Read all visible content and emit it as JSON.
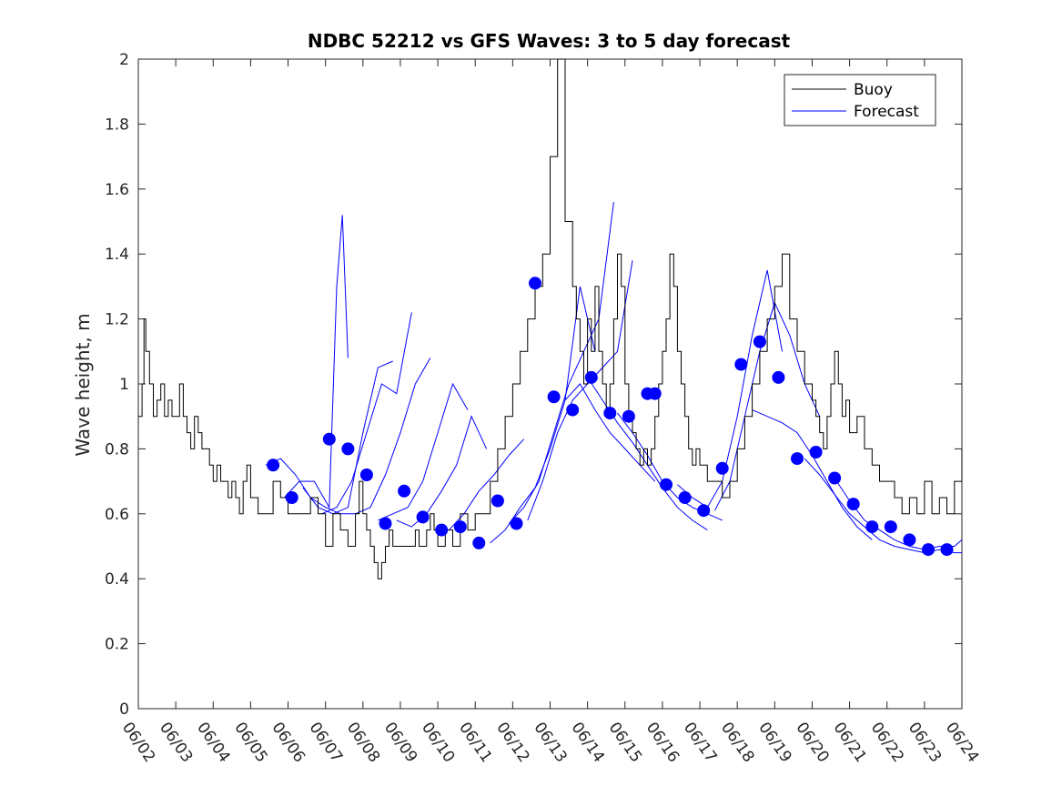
{
  "chart_data": {
    "type": "line",
    "title": "NDBC 52212 vs GFS Waves: 3 to 5 day forecast",
    "xlabel": "",
    "ylabel": "Wave height, m",
    "xlim": [
      "06/02",
      "06/24"
    ],
    "ylim": [
      0,
      2
    ],
    "yticks": [
      "0",
      "0.2",
      "0.4",
      "0.6",
      "0.8",
      "1",
      "1.2",
      "1.4",
      "1.6",
      "1.8",
      "2"
    ],
    "xticks": [
      "06/02",
      "06/03",
      "06/04",
      "06/05",
      "06/06",
      "06/07",
      "06/08",
      "06/09",
      "06/10",
      "06/11",
      "06/12",
      "06/13",
      "06/14",
      "06/15",
      "06/16",
      "06/17",
      "06/18",
      "06/19",
      "06/20",
      "06/21",
      "06/22",
      "06/23",
      "06/24"
    ],
    "grid": false,
    "legend": {
      "position": "top-right",
      "entries": [
        "Buoy",
        "Forecast"
      ]
    },
    "colors": {
      "buoy": "#000000",
      "forecast": "#0000ff",
      "marker": "#0000ff"
    },
    "series": [
      {
        "name": "Buoy",
        "x_days": [
          0,
          0.1,
          0.15,
          0.2,
          0.3,
          0.4,
          0.5,
          0.6,
          0.7,
          0.8,
          0.9,
          1.0,
          1.1,
          1.2,
          1.3,
          1.4,
          1.5,
          1.6,
          1.7,
          1.8,
          1.9,
          2.0,
          2.1,
          2.2,
          2.3,
          2.4,
          2.5,
          2.6,
          2.7,
          2.8,
          2.9,
          3.0,
          3.2,
          3.4,
          3.6,
          3.8,
          4.0,
          4.2,
          4.4,
          4.6,
          4.8,
          5.0,
          5.2,
          5.4,
          5.6,
          5.8,
          5.9,
          6.0,
          6.1,
          6.2,
          6.3,
          6.4,
          6.5,
          6.6,
          6.7,
          6.8,
          6.9,
          7.0,
          7.1,
          7.2,
          7.3,
          7.4,
          7.5,
          7.6,
          7.7,
          7.8,
          7.9,
          8.0,
          8.2,
          8.4,
          8.6,
          8.8,
          9.0,
          9.2,
          9.4,
          9.6,
          9.8,
          10.0,
          10.2,
          10.4,
          10.6,
          10.8,
          11.0,
          11.2,
          11.4,
          11.6,
          11.7,
          11.8,
          11.9,
          12.0,
          12.1,
          12.2,
          12.3,
          12.4,
          12.5,
          12.6,
          12.7,
          12.8,
          12.9,
          13.0,
          13.1,
          13.2,
          13.3,
          13.4,
          13.5,
          13.6,
          13.7,
          13.8,
          13.9,
          14.0,
          14.1,
          14.2,
          14.3,
          14.4,
          14.5,
          14.6,
          14.7,
          14.8,
          14.9,
          15.0,
          15.2,
          15.4,
          15.6,
          15.8,
          16.0,
          16.2,
          16.4,
          16.6,
          16.8,
          17.0,
          17.2,
          17.4,
          17.6,
          17.8,
          18.0,
          18.1,
          18.2,
          18.3,
          18.4,
          18.5,
          18.6,
          18.7,
          18.8,
          18.9,
          19.0,
          19.2,
          19.4,
          19.6,
          19.8,
          20.0,
          20.2,
          20.4,
          20.6,
          20.8,
          21.0,
          21.2,
          21.4,
          21.6,
          21.8,
          22.0
        ],
        "values": [
          0.9,
          1.0,
          1.2,
          1.1,
          1.0,
          0.9,
          0.95,
          1.0,
          0.9,
          0.95,
          0.9,
          0.9,
          1.0,
          0.9,
          0.85,
          0.8,
          0.9,
          0.85,
          0.8,
          0.8,
          0.75,
          0.7,
          0.75,
          0.7,
          0.7,
          0.65,
          0.7,
          0.65,
          0.6,
          0.7,
          0.75,
          0.65,
          0.6,
          0.6,
          0.7,
          0.65,
          0.6,
          0.6,
          0.6,
          0.65,
          0.6,
          0.5,
          0.6,
          0.55,
          0.5,
          0.6,
          0.7,
          0.6,
          0.55,
          0.5,
          0.45,
          0.4,
          0.45,
          0.5,
          0.55,
          0.5,
          0.5,
          0.5,
          0.5,
          0.5,
          0.5,
          0.55,
          0.5,
          0.5,
          0.55,
          0.6,
          0.55,
          0.5,
          0.55,
          0.5,
          0.6,
          0.55,
          0.6,
          0.6,
          0.7,
          0.8,
          0.9,
          1.0,
          1.1,
          1.2,
          1.3,
          1.4,
          1.7,
          2.0,
          1.5,
          1.3,
          1.2,
          1.1,
          1.0,
          1.2,
          1.1,
          1.3,
          1.1,
          1.0,
          0.9,
          1.0,
          1.2,
          1.4,
          1.3,
          1.0,
          0.9,
          0.85,
          0.8,
          0.75,
          0.8,
          0.75,
          0.8,
          0.9,
          1.0,
          1.1,
          1.2,
          1.4,
          1.3,
          1.1,
          1.0,
          0.9,
          0.8,
          0.75,
          0.8,
          0.75,
          0.7,
          0.7,
          0.65,
          0.7,
          0.8,
          0.9,
          1.0,
          1.1,
          1.2,
          1.3,
          1.4,
          1.2,
          1.1,
          1.0,
          0.95,
          0.9,
          0.85,
          0.8,
          0.9,
          1.0,
          1.1,
          1.0,
          0.9,
          0.95,
          0.85,
          0.9,
          0.8,
          0.75,
          0.7,
          0.7,
          0.65,
          0.6,
          0.65,
          0.6,
          0.7,
          0.6,
          0.65,
          0.6,
          0.7,
          0.8
        ]
      },
      {
        "name": "Forecast",
        "runs": [
          {
            "x_days": [
              3.4,
              3.8,
              4.2,
              4.6,
              5.0,
              5.4
            ],
            "values": [
              0.75,
              0.77,
              0.72,
              0.65,
              0.62,
              0.6
            ]
          },
          {
            "x_days": [
              3.9,
              4.3,
              4.7,
              5.1,
              5.3,
              5.45,
              5.6
            ],
            "values": [
              0.65,
              0.7,
              0.7,
              0.62,
              1.3,
              1.52,
              1.08
            ]
          },
          {
            "x_days": [
              4.4,
              4.8,
              5.2,
              5.6,
              6.0,
              6.4,
              6.8
            ],
            "values": [
              0.68,
              0.62,
              0.6,
              0.62,
              0.85,
              1.05,
              1.07
            ]
          },
          {
            "x_days": [
              4.9,
              5.3,
              5.7,
              6.1,
              6.5,
              6.9,
              7.3
            ],
            "values": [
              0.6,
              0.62,
              0.7,
              0.85,
              1.0,
              0.97,
              1.22
            ]
          },
          {
            "x_days": [
              5.4,
              5.8,
              6.2,
              6.6,
              7.0,
              7.4,
              7.8
            ],
            "values": [
              0.6,
              0.6,
              0.62,
              0.72,
              0.85,
              1.0,
              1.08
            ]
          },
          {
            "x_days": [
              6.4,
              6.8,
              7.2,
              7.6,
              8.0,
              8.4,
              8.8
            ],
            "values": [
              0.58,
              0.6,
              0.62,
              0.7,
              0.85,
              1.0,
              0.92
            ]
          },
          {
            "x_days": [
              6.9,
              7.3,
              7.7,
              8.1,
              8.5,
              8.9,
              9.3
            ],
            "values": [
              0.58,
              0.56,
              0.6,
              0.67,
              0.75,
              0.9,
              0.8
            ]
          },
          {
            "x_days": [
              7.9,
              8.3,
              8.7,
              9.1,
              9.5,
              9.9,
              10.3
            ],
            "values": [
              0.55,
              0.55,
              0.6,
              0.67,
              0.72,
              0.78,
              0.83
            ]
          },
          {
            "x_days": [
              9.4,
              9.8,
              10.2,
              10.6,
              11.0,
              11.4,
              11.8,
              12.2
            ],
            "values": [
              0.51,
              0.55,
              0.62,
              0.68,
              0.8,
              0.95,
              1.3,
              1.1
            ]
          },
          {
            "x_days": [
              9.9,
              10.3,
              10.7,
              11.1,
              11.5,
              11.9,
              12.3,
              12.7
            ],
            "values": [
              0.57,
              0.62,
              0.7,
              0.85,
              1.0,
              1.1,
              1.2,
              1.56
            ]
          },
          {
            "x_days": [
              10.4,
              10.8,
              11.2,
              11.6,
              12.0,
              12.4,
              12.8,
              13.2
            ],
            "values": [
              0.58,
              0.7,
              0.85,
              0.95,
              1.0,
              1.05,
              1.1,
              1.38
            ]
          },
          {
            "x_days": [
              11.4,
              11.8,
              12.2,
              12.6,
              13.0,
              13.4,
              13.8
            ],
            "values": [
              0.95,
              1.0,
              0.92,
              0.85,
              0.8,
              0.75,
              0.7
            ]
          },
          {
            "x_days": [
              12.0,
              12.4,
              12.8,
              13.2,
              13.6,
              14.0,
              14.4,
              14.8,
              15.2
            ],
            "values": [
              1.02,
              0.95,
              0.88,
              0.82,
              0.75,
              0.68,
              0.62,
              0.58,
              0.55
            ]
          },
          {
            "x_days": [
              12.8,
              13.2,
              13.6,
              14.0,
              14.4,
              14.8,
              15.2,
              15.6
            ],
            "values": [
              0.91,
              0.85,
              0.78,
              0.7,
              0.65,
              0.62,
              0.6,
              0.58
            ]
          },
          {
            "x_days": [
              14.4,
              14.8,
              15.2,
              15.6,
              16.0,
              16.4,
              16.8,
              17.2
            ],
            "values": [
              0.69,
              0.65,
              0.62,
              0.7,
              0.9,
              1.15,
              1.35,
              1.1
            ]
          },
          {
            "x_days": [
              15.4,
              15.8,
              16.2,
              16.6,
              17.0,
              17.4,
              17.8,
              18.2
            ],
            "values": [
              0.61,
              0.7,
              0.9,
              1.1,
              1.25,
              1.15,
              1.0,
              0.9
            ]
          },
          {
            "x_days": [
              16.4,
              16.8,
              17.2,
              17.6,
              18.0,
              18.4,
              18.8,
              19.2,
              19.6
            ],
            "values": [
              0.92,
              0.9,
              0.88,
              0.85,
              0.78,
              0.7,
              0.62,
              0.56,
              0.52
            ]
          },
          {
            "x_days": [
              17.8,
              18.2,
              18.6,
              19.0,
              19.4,
              19.8,
              20.2,
              20.6,
              21.0,
              21.4,
              21.8,
              22.0
            ],
            "values": [
              0.77,
              0.72,
              0.66,
              0.6,
              0.56,
              0.52,
              0.5,
              0.49,
              0.48,
              0.49,
              0.48,
              0.48
            ]
          },
          {
            "x_days": [
              18.6,
              19.0,
              19.4,
              19.8,
              20.2,
              20.6,
              21.0,
              21.4,
              21.8,
              22.0
            ],
            "values": [
              0.71,
              0.64,
              0.58,
              0.55,
              0.52,
              0.5,
              0.49,
              0.5,
              0.5,
              0.52
            ]
          }
        ]
      }
    ],
    "markers": {
      "x_days": [
        3.6,
        4.1,
        5.1,
        5.6,
        6.1,
        6.6,
        7.1,
        7.6,
        8.1,
        8.6,
        9.1,
        9.6,
        10.1,
        10.6,
        11.1,
        11.6,
        12.1,
        12.6,
        13.1,
        13.6,
        13.8,
        14.1,
        14.6,
        15.1,
        15.6,
        16.1,
        16.6,
        17.1,
        17.6,
        18.1,
        18.6,
        19.1,
        19.6,
        20.1,
        20.6,
        21.1,
        21.6
      ],
      "values": [
        0.75,
        0.65,
        0.83,
        0.8,
        0.72,
        0.57,
        0.67,
        0.59,
        0.55,
        0.56,
        0.51,
        0.64,
        0.57,
        1.31,
        0.96,
        0.92,
        1.02,
        0.91,
        0.9,
        0.97,
        0.97,
        0.69,
        0.65,
        0.61,
        0.74,
        1.06,
        1.13,
        1.02,
        0.77,
        0.79,
        0.71,
        0.63,
        0.56,
        0.56,
        0.52,
        0.49,
        0.49
      ]
    }
  }
}
